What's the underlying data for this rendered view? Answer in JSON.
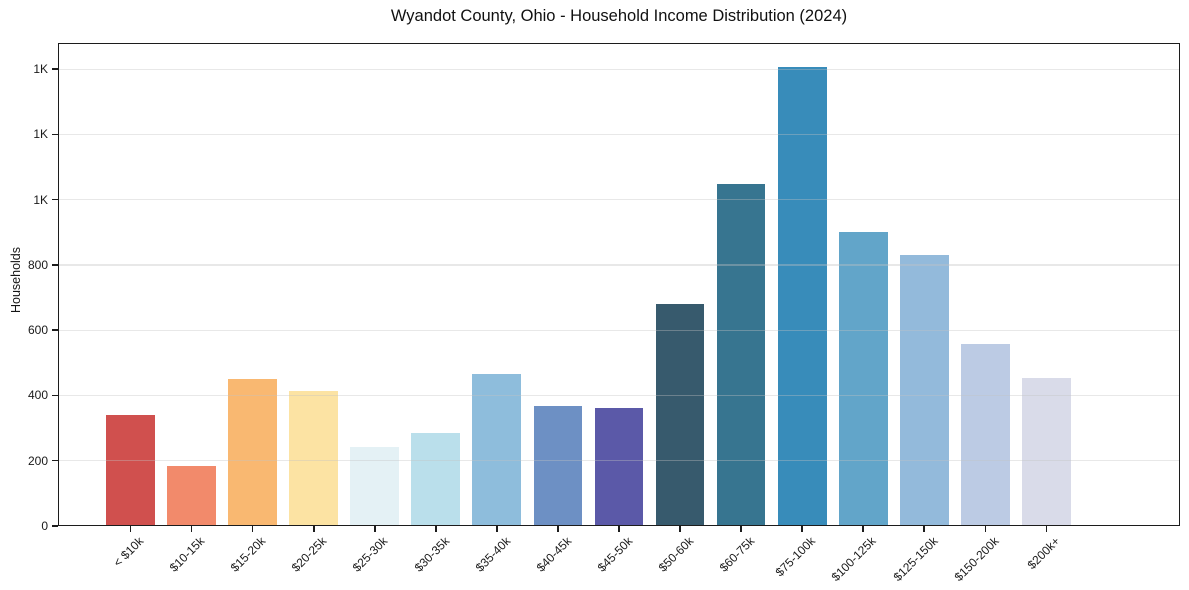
{
  "chart_data": {
    "type": "bar",
    "title": "Wyandot County, Ohio - Household Income Distribution (2024)",
    "xlabel": "",
    "ylabel": "Households",
    "categories": [
      "< $10k",
      "$10-15k",
      "$15-20k",
      "$20-25k",
      "$25-30k",
      "$30-35k",
      "$35-40k",
      "$40-45k",
      "$45-50k",
      "$50-60k",
      "$60-75k",
      "$75-100k",
      "$100-125k",
      "$125-150k",
      "$150-200k",
      "$200k+"
    ],
    "values": [
      340,
      185,
      452,
      415,
      242,
      286,
      465,
      368,
      362,
      680,
      1048,
      1408,
      900,
      830,
      557,
      455
    ],
    "bar_colors": [
      "#d0504e",
      "#f28a6b",
      "#f9b871",
      "#fce3a3",
      "#e4f1f5",
      "#badfeb",
      "#8ebddc",
      "#6d90c4",
      "#5b59a8",
      "#375a6d",
      "#377590",
      "#388cba",
      "#62a5c9",
      "#93badb",
      "#bccbe4",
      "#d9dbe9"
    ],
    "ylim": [
      0,
      1480
    ],
    "ytick_values": [
      0,
      200,
      400,
      600,
      800,
      1000,
      1200,
      1400
    ],
    "ytick_labels": [
      "0",
      "200",
      "400",
      "600",
      "800",
      "1K",
      "1K",
      "1K"
    ],
    "xtick_rotation_deg": 45,
    "bar_width_fraction": 0.8,
    "grid": "horizontal",
    "legend": "none",
    "background_color": "#ffffff",
    "axis_color": "#1c1c1c",
    "grid_color": "#e7e7e7"
  }
}
